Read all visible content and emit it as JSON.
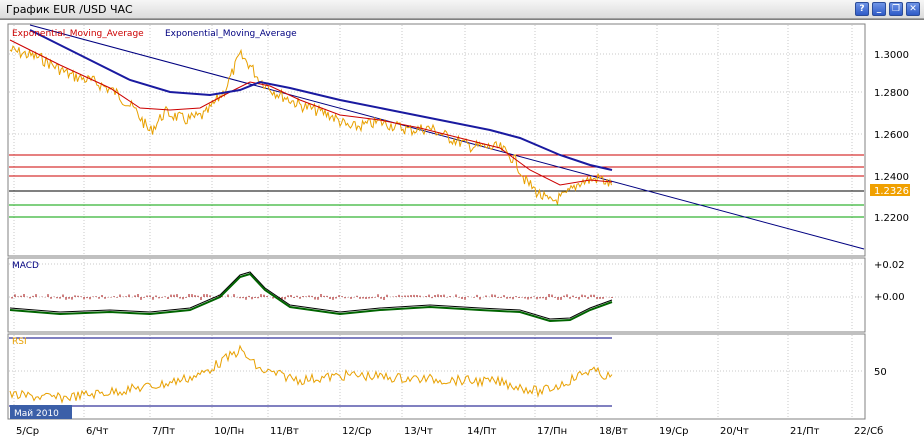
{
  "window": {
    "title": "График EUR /USD  ЧАС",
    "buttons": [
      {
        "name": "help-icon",
        "glyph": "?"
      },
      {
        "name": "minimize-icon",
        "glyph": "_"
      },
      {
        "name": "restore-icon",
        "glyph": "❐"
      },
      {
        "name": "close-icon",
        "glyph": "✕"
      }
    ]
  },
  "legend": {
    "ema1": "Exponential_Moving_Average",
    "ema2": "Exponential_Moving_Average",
    "ema1_color": "#cc0000",
    "ema2_color": "#000080"
  },
  "price_axis": {
    "ticks": [
      "1.3000",
      "1.2800",
      "1.2600",
      "1.2400",
      "1.2200"
    ],
    "current": "1.2326",
    "current_color": "#f0a000"
  },
  "macd_panel": {
    "label": "MACD",
    "ticks": [
      "+0.02",
      "+0.00"
    ]
  },
  "rsi_panel": {
    "label": "RSI",
    "ticks": [
      "50"
    ]
  },
  "time_axis": {
    "month_badge": "Май 2010",
    "labels": [
      "5/Ср",
      "6/Чт",
      "7/Пт",
      "10/Пн",
      "11/Вт",
      "12/Ср",
      "13/Чт",
      "14/Пт",
      "17/Пн",
      "18/Вт",
      "19/Ср",
      "20/Чт",
      "21/Пт",
      "22/Сб"
    ]
  },
  "colors": {
    "price_line": "#e8a000",
    "ema_fast": "#cc0000",
    "ema_slow": "#1a1aa0",
    "trend_line": "#000080",
    "resistance": "#cc0000",
    "support": "#00a000",
    "macd_line": "#006400",
    "signal_line": "#000000",
    "histogram": "#a00000",
    "rsi_line": "#e8a000"
  }
}
